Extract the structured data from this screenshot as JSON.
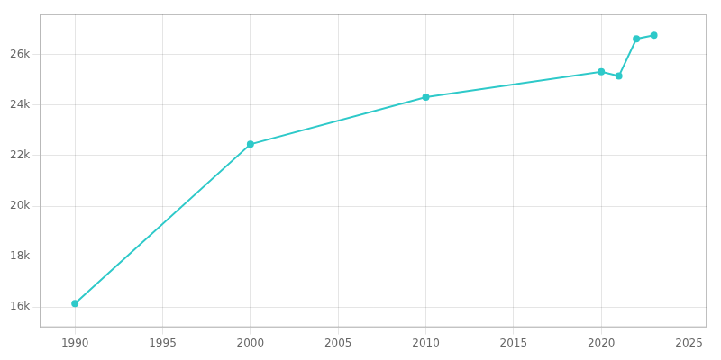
{
  "chart_data": {
    "type": "line",
    "x": [
      1990,
      2000,
      2010,
      2020,
      2021,
      2022,
      2023
    ],
    "values": [
      16137,
      22452,
      24315,
      25326,
      25154,
      26629,
      26774
    ],
    "color": "#2ec9c9",
    "marker": "circle",
    "xlim": [
      1988,
      2026
    ],
    "ylim": [
      15200,
      27600
    ],
    "xticks": [
      1990,
      1995,
      2000,
      2005,
      2010,
      2015,
      2020,
      2025
    ],
    "yticks": [
      {
        "value": 16000,
        "label": "16k"
      },
      {
        "value": 18000,
        "label": "18k"
      },
      {
        "value": 20000,
        "label": "20k"
      },
      {
        "value": 22000,
        "label": "22k"
      },
      {
        "value": 24000,
        "label": "24k"
      },
      {
        "value": 26000,
        "label": "26k"
      }
    ],
    "grid": true
  }
}
